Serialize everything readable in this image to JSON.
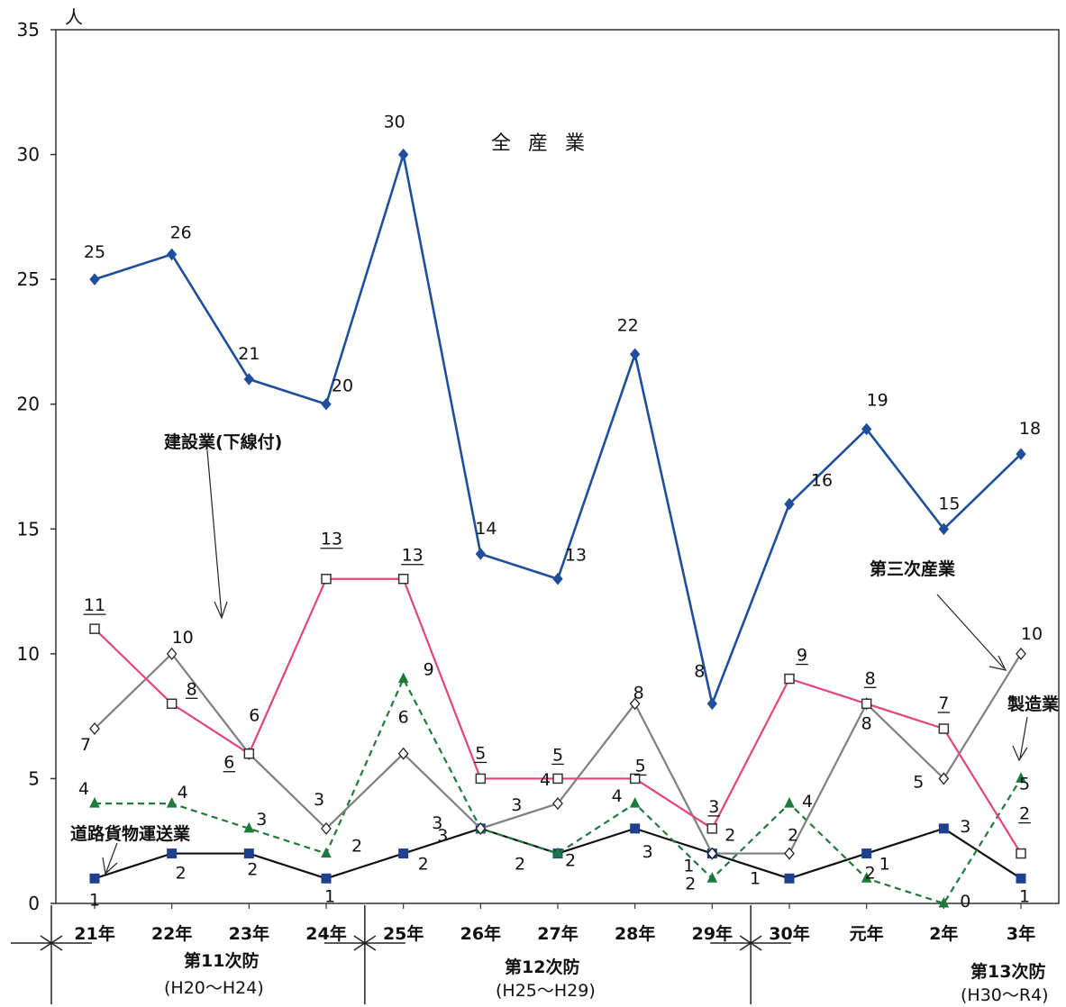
{
  "chart_data": {
    "type": "line",
    "title": "全 産 業",
    "ylabel": "人",
    "ylim": [
      0,
      35
    ],
    "yticks": [
      "0",
      "5",
      "10",
      "15",
      "20",
      "25",
      "30",
      "35"
    ],
    "categories": [
      "21年",
      "22年",
      "23年",
      "24年",
      "25年",
      "26年",
      "27年",
      "28年",
      "29年",
      "30年",
      "元年",
      "2年",
      "3年"
    ],
    "series": [
      {
        "name": "全産業",
        "color": "#1f4e9c",
        "marker": "diamond-filled",
        "dash": false,
        "values": [
          25,
          26,
          21,
          20,
          30,
          14,
          13,
          22,
          8,
          16,
          19,
          15,
          18
        ]
      },
      {
        "name": "建設業(下線付)",
        "color": "#e2457a",
        "marker": "square-open",
        "dash": false,
        "underline": true,
        "values": [
          11,
          8,
          6,
          13,
          13,
          5,
          5,
          5,
          3,
          9,
          8,
          7,
          2
        ]
      },
      {
        "name": "第三次産業",
        "color": "#7f7f7f",
        "marker": "diamond-open",
        "dash": false,
        "values": [
          7,
          10,
          6,
          3,
          6,
          3,
          4,
          8,
          2,
          2,
          8,
          5,
          10
        ]
      },
      {
        "name": "製造業",
        "color": "#1e7a3c",
        "marker": "triangle-filled",
        "dash": true,
        "values": [
          4,
          4,
          3,
          2,
          9,
          3,
          2,
          4,
          1,
          4,
          1,
          0,
          5
        ]
      },
      {
        "name": "道路貨物運送業",
        "color": "#111111",
        "marker": "square-filled",
        "dash": false,
        "values": [
          1,
          2,
          2,
          1,
          2,
          3,
          2,
          3,
          2,
          1,
          2,
          3,
          1
        ]
      }
    ],
    "annotations": {
      "kensetsu": "建設業(下線付)",
      "sanji": "第三次産業",
      "seizo": "製造業",
      "doro": "道路貨物運送業"
    },
    "periods": [
      {
        "label": "第11次防",
        "range": "(H20～H24)"
      },
      {
        "label": "第12次防",
        "range": "(H25～H29)"
      },
      {
        "label": "第13次防",
        "range": "(H30～R4)"
      }
    ]
  }
}
